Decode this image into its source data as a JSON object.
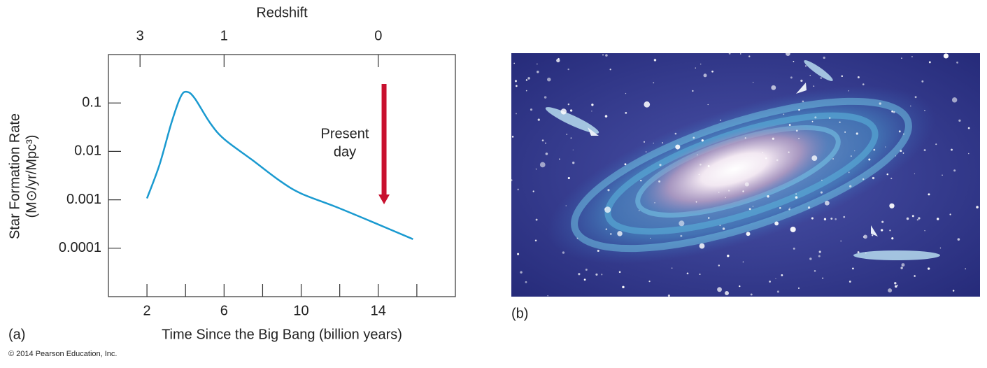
{
  "chart_data": {
    "type": "line",
    "panel_label": "(a)",
    "x_label": "Time Since the Big Bang (billion years)",
    "y_label": [
      "Star Formation Rate",
      "(M⊙/yr/Mpc³)"
    ],
    "x2_label": "Redshift",
    "log_y": true,
    "xlim": [
      0,
      18
    ],
    "xticks": [
      2,
      6,
      10,
      14
    ],
    "xminor_ticks": [
      4,
      8,
      12,
      16
    ],
    "x2ticks": [
      {
        "value": 1.64,
        "label": "3"
      },
      {
        "value": 6,
        "label": "1"
      },
      {
        "value": 14,
        "label": "0"
      }
    ],
    "ylim": [
      1e-05,
      1
    ],
    "yticks": [
      0.1,
      0.01,
      0.001,
      0.0001
    ],
    "x": [
      2,
      2.65,
      3.27,
      3.75,
      4.07,
      4.47,
      5.27,
      6,
      7.45,
      8.9,
      10,
      11.8,
      14,
      15.8
    ],
    "series": [
      {
        "name": "Star formation rate",
        "color": "#1a9ad0",
        "values": [
          0.00107,
          0.0053,
          0.039,
          0.135,
          0.17,
          0.126,
          0.039,
          0.018,
          0.0067,
          0.00246,
          0.00135,
          0.000716,
          0.00031,
          0.000154
        ]
      }
    ],
    "annotation": {
      "text": [
        "Present",
        "day"
      ],
      "x": 14.3,
      "color": "#c8102e"
    }
  },
  "image_panel": {
    "panel_label": "(b)"
  },
  "credit": "© 2014 Pearson Education, Inc."
}
